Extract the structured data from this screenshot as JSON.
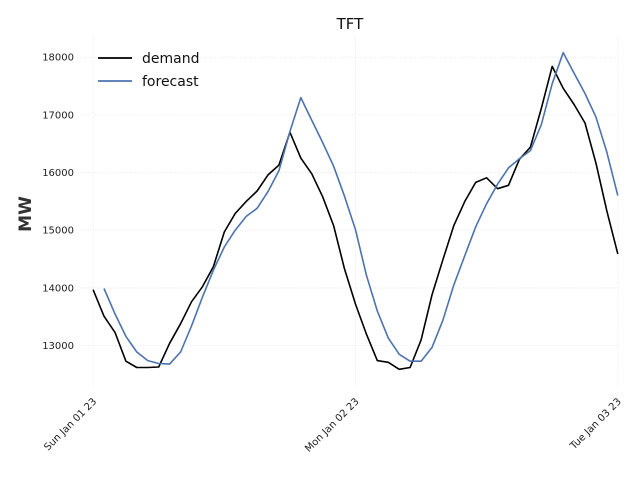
{
  "chart_data": {
    "type": "line",
    "title": "TFT",
    "xlabel": "",
    "ylabel": "MW",
    "x_ticks": [
      "Sun Jan 01 23",
      "Mon Jan 02 23",
      "Tue Jan 03 23"
    ],
    "x_tick_hours": [
      0,
      24,
      48
    ],
    "xlim_hours": [
      -1.2,
      48.2
    ],
    "ylim": [
      12300,
      18350
    ],
    "y_ticks": [
      13000,
      14000,
      15000,
      16000,
      17000,
      18000
    ],
    "y_tick_labels": [
      "13000",
      "14000",
      "15000",
      "16000",
      "17000",
      "18000"
    ],
    "grid": true,
    "legend_position": "top-left",
    "series": [
      {
        "name": "demand",
        "color": "#000000",
        "x_hours": [
          0,
          1,
          2,
          3,
          4,
          5,
          6,
          7,
          8,
          9,
          10,
          11,
          12,
          13,
          14,
          15,
          16,
          17,
          18,
          19,
          20,
          21,
          22,
          23,
          24,
          25,
          26,
          27,
          28,
          29,
          30,
          31,
          32,
          33,
          34,
          35,
          36,
          37,
          38,
          39,
          40,
          41,
          42,
          43,
          44,
          45,
          46,
          47,
          48
        ],
        "values": [
          13970,
          13510,
          13230,
          12730,
          12620,
          12620,
          12630,
          13040,
          13380,
          13760,
          14020,
          14370,
          14970,
          15290,
          15500,
          15680,
          15960,
          16130,
          16700,
          16250,
          15980,
          15580,
          15080,
          14330,
          13720,
          13200,
          12740,
          12710,
          12590,
          12620,
          13100,
          13880,
          14490,
          15080,
          15500,
          15830,
          15910,
          15720,
          15780,
          16230,
          16440,
          17110,
          17840,
          17460,
          17180,
          16860,
          16160,
          15330,
          14590
        ]
      },
      {
        "name": "forecast",
        "color": "#4c72b0",
        "x_hours": [
          1,
          2,
          3,
          4,
          5,
          6,
          7,
          8,
          9,
          10,
          11,
          12,
          13,
          14,
          15,
          16,
          17,
          18,
          19,
          20,
          21,
          22,
          23,
          24,
          25,
          26,
          27,
          28,
          29,
          30,
          31,
          32,
          33,
          34,
          35,
          36,
          37,
          38,
          39,
          40,
          41,
          42,
          43,
          44,
          45,
          46,
          47,
          48
        ],
        "values": [
          13990,
          13550,
          13160,
          12890,
          12740,
          12690,
          12680,
          12890,
          13340,
          13840,
          14310,
          14710,
          15000,
          15240,
          15380,
          15670,
          16030,
          16710,
          17300,
          16910,
          16520,
          16110,
          15590,
          15010,
          14220,
          13600,
          13130,
          12850,
          12730,
          12730,
          12970,
          13440,
          14050,
          14560,
          15060,
          15460,
          15800,
          16080,
          16240,
          16380,
          16830,
          17540,
          18080,
          17720,
          17370,
          16960,
          16350,
          15600
        ]
      }
    ]
  }
}
